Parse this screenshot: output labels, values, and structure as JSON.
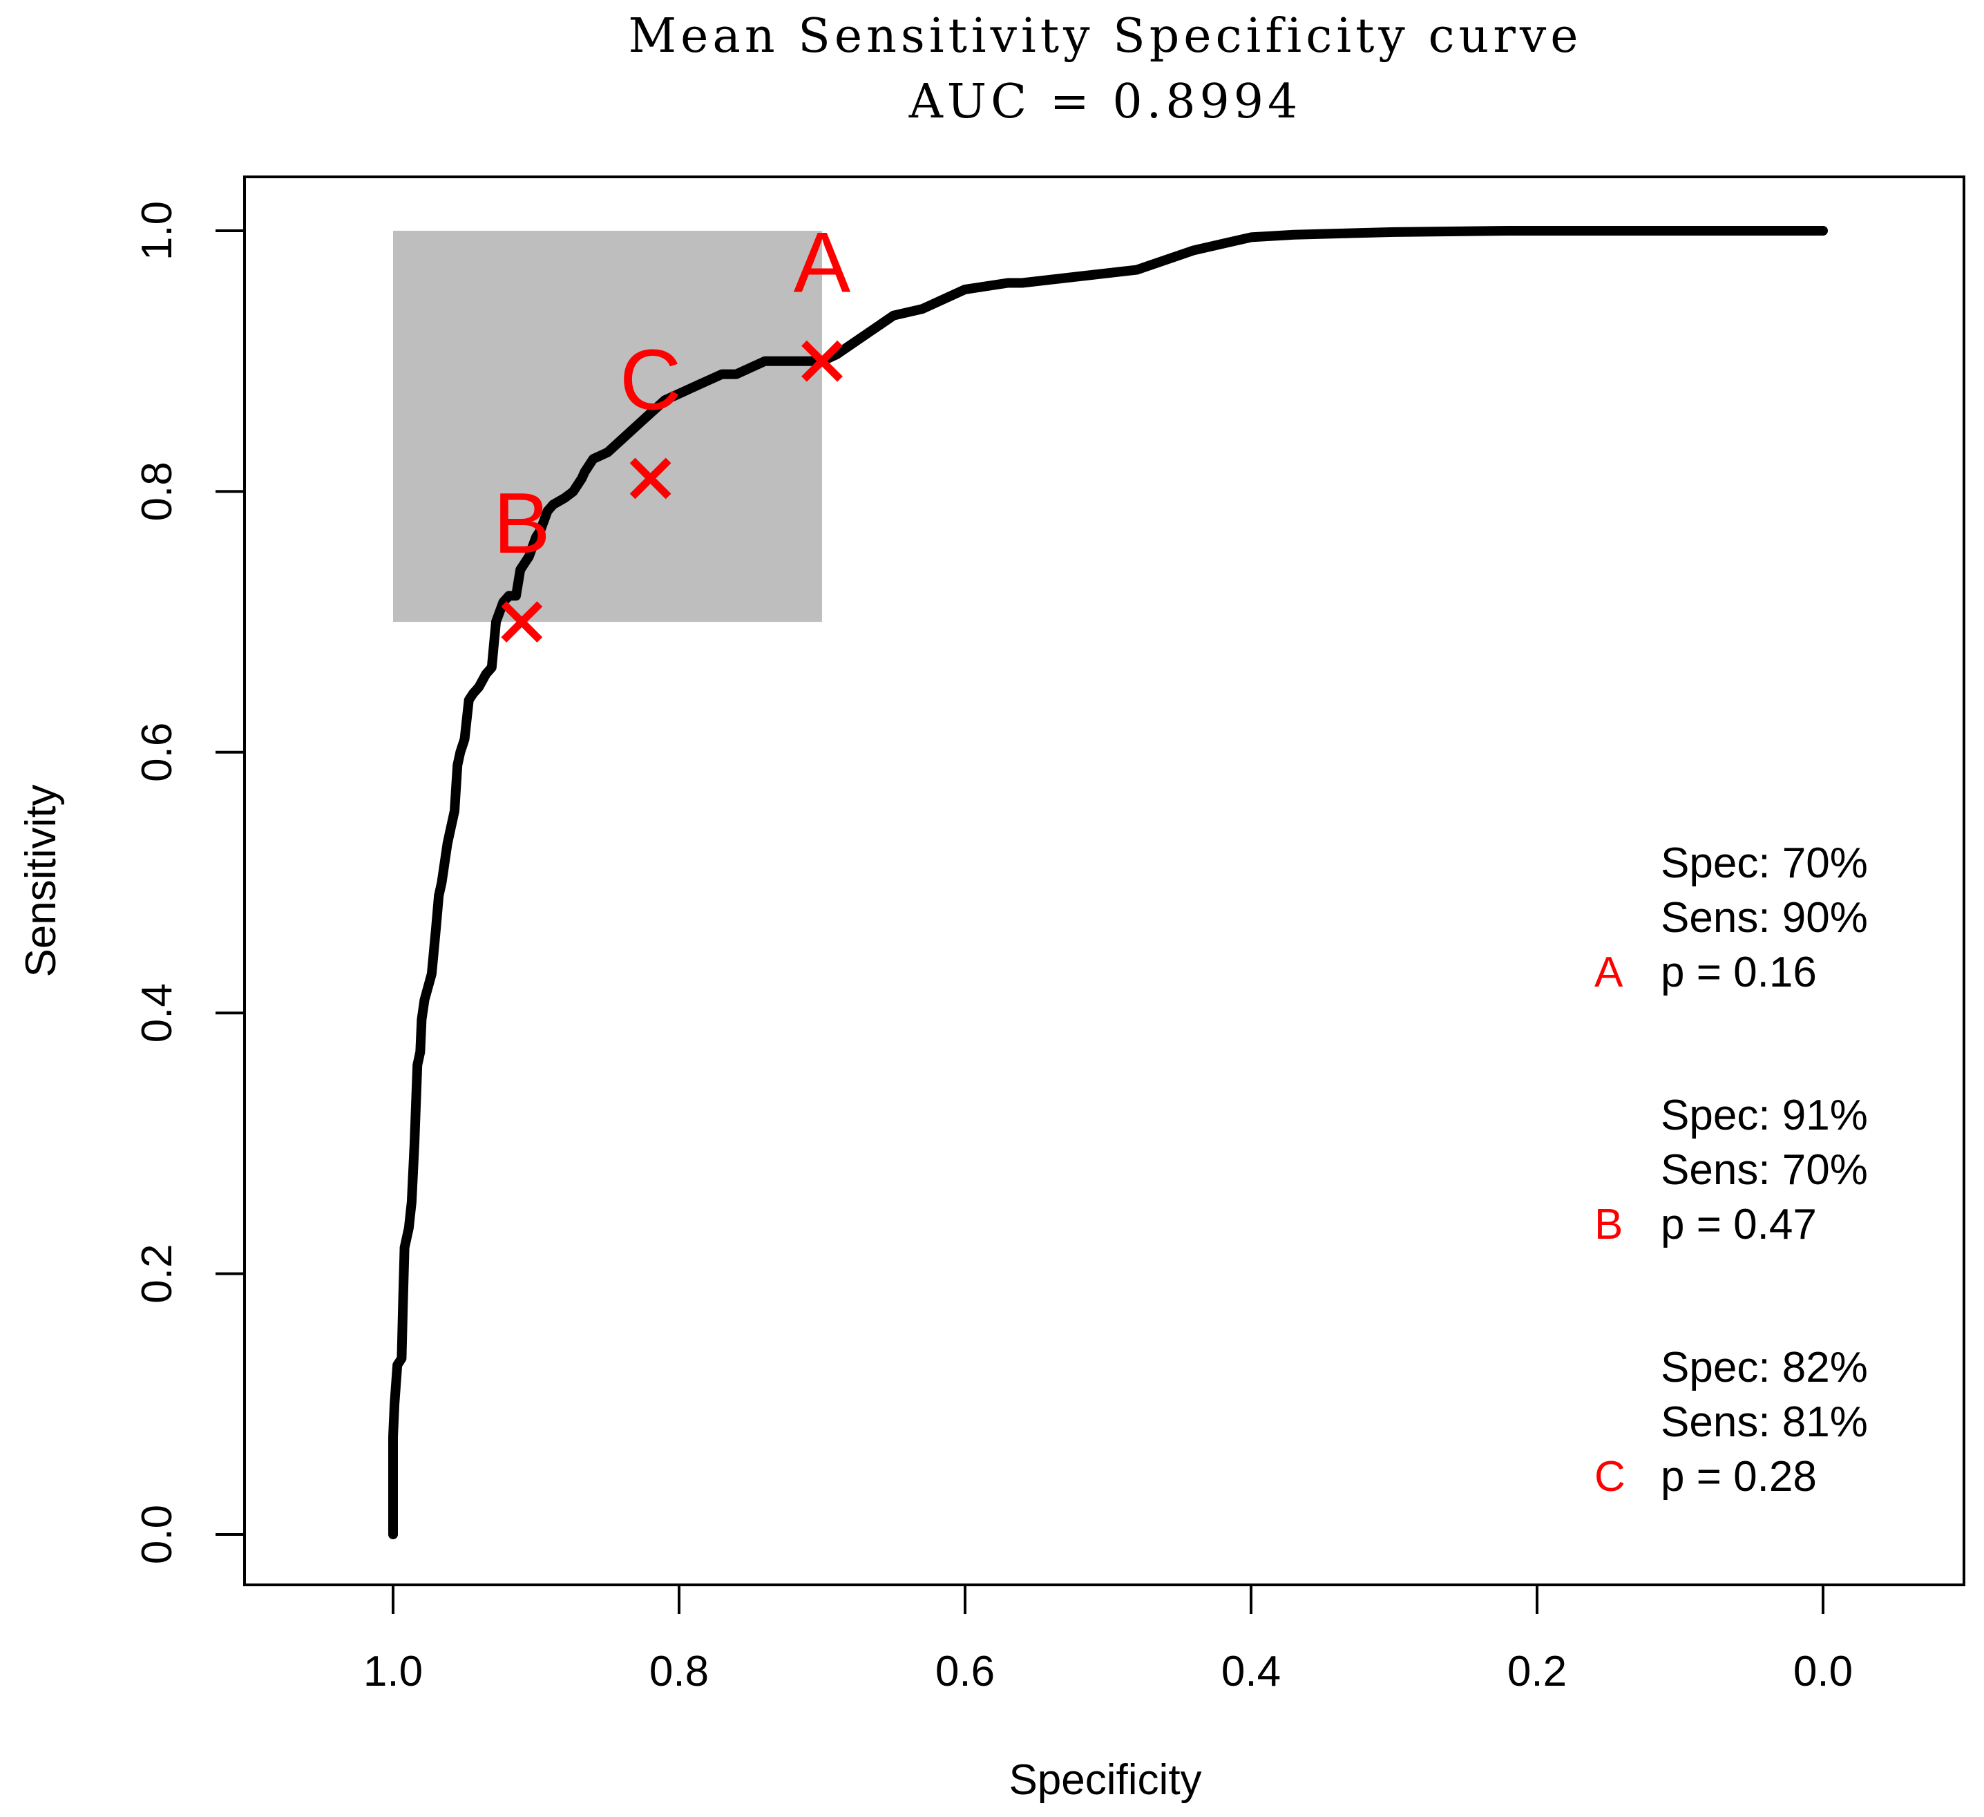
{
  "chart_data": {
    "type": "line",
    "title": "Mean Sensitivity Specificity curve",
    "subtitle": "AUC = 0.8994",
    "xlabel": "Specificity",
    "ylabel": "Sensitivity",
    "xlim": [
      1.0,
      0.0
    ],
    "ylim": [
      0.0,
      1.0
    ],
    "x_reversed": true,
    "xticks": [
      "1.0",
      "0.8",
      "0.6",
      "0.4",
      "0.2",
      "0.0"
    ],
    "yticks": [
      "0.0",
      "0.2",
      "0.4",
      "0.6",
      "0.8",
      "1.0"
    ],
    "grid": false,
    "line_color": "#000000",
    "marker_color": "#ff0000",
    "shaded_region": {
      "x_range": [
        1.0,
        0.7
      ],
      "y_range": [
        0.7,
        1.0
      ],
      "color": "#bebebe"
    },
    "curve": {
      "x": [
        1.0,
        1.0,
        0.999,
        0.997,
        0.994,
        0.993,
        0.992,
        0.989,
        0.987,
        0.985,
        0.983,
        0.981,
        0.98,
        0.978,
        0.973,
        0.97,
        0.968,
        0.966,
        0.962,
        0.96,
        0.957,
        0.955,
        0.953,
        0.95,
        0.947,
        0.944,
        0.94,
        0.935,
        0.931,
        0.928,
        0.923,
        0.919,
        0.914,
        0.911,
        0.908,
        0.905,
        0.9,
        0.897,
        0.892,
        0.888,
        0.88,
        0.874,
        0.868,
        0.866,
        0.86,
        0.85,
        0.84,
        0.83,
        0.82,
        0.81,
        0.8,
        0.79,
        0.78,
        0.77,
        0.76,
        0.74,
        0.72,
        0.7,
        0.69,
        0.67,
        0.65,
        0.63,
        0.6,
        0.57,
        0.56,
        0.52,
        0.48,
        0.44,
        0.4,
        0.37,
        0.3,
        0.22,
        0.1,
        0.0
      ],
      "y": [
        0.0,
        0.075,
        0.1,
        0.13,
        0.135,
        0.18,
        0.22,
        0.235,
        0.255,
        0.3,
        0.36,
        0.37,
        0.395,
        0.41,
        0.43,
        0.465,
        0.49,
        0.5,
        0.53,
        0.54,
        0.555,
        0.59,
        0.6,
        0.61,
        0.64,
        0.645,
        0.65,
        0.66,
        0.665,
        0.7,
        0.715,
        0.72,
        0.72,
        0.74,
        0.745,
        0.75,
        0.765,
        0.77,
        0.785,
        0.79,
        0.795,
        0.8,
        0.81,
        0.815,
        0.825,
        0.83,
        0.84,
        0.85,
        0.86,
        0.87,
        0.875,
        0.88,
        0.885,
        0.89,
        0.89,
        0.9,
        0.9,
        0.9,
        0.905,
        0.92,
        0.935,
        0.94,
        0.955,
        0.96,
        0.96,
        0.965,
        0.97,
        0.985,
        0.995,
        0.997,
        0.999,
        1.0,
        1.0,
        1.0
      ]
    },
    "points": [
      {
        "label": "A",
        "spec": 0.7,
        "sens": 0.9
      },
      {
        "label": "B",
        "spec": 0.91,
        "sens": 0.7
      },
      {
        "label": "C",
        "spec": 0.82,
        "sens": 0.81
      }
    ],
    "annotations": [
      {
        "letter": "A",
        "line1": "Spec: 70%",
        "line2": "Sens: 90%",
        "line3": "p = 0.16"
      },
      {
        "letter": "B",
        "line1": "Spec: 91%",
        "line2": "Sens: 70%",
        "line3": "p = 0.47"
      },
      {
        "letter": "C",
        "line1": "Spec: 82%",
        "line2": "Sens: 81%",
        "line3": "p = 0.28"
      }
    ]
  }
}
